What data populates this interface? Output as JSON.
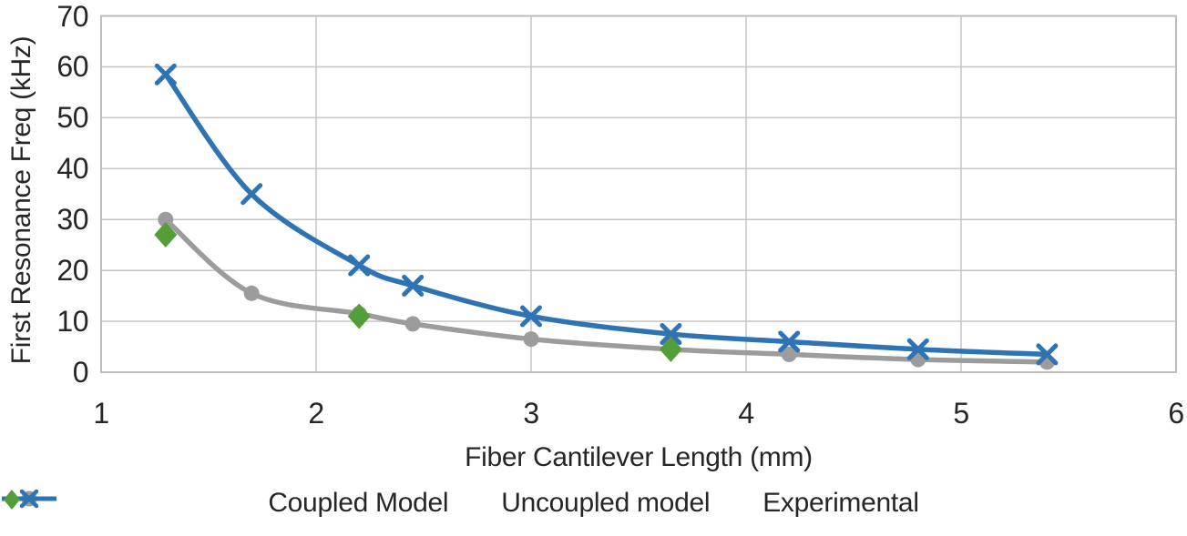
{
  "chart_data": {
    "type": "line",
    "title": "",
    "xlabel": "Fiber Cantilever Length (mm)",
    "ylabel": "First Resonance Freq (kHz)",
    "xlim": [
      1,
      6
    ],
    "ylim": [
      0,
      70
    ],
    "x_ticks": [
      "1",
      "2",
      "3",
      "4",
      "5",
      "6"
    ],
    "y_ticks": [
      "0",
      "10",
      "20",
      "30",
      "40",
      "50",
      "60",
      "70"
    ],
    "grid": true,
    "legend_position": "bottom",
    "x": [
      1.3,
      1.7,
      2.2,
      2.45,
      3.0,
      3.65,
      4.2,
      4.8,
      5.4
    ],
    "series": [
      {
        "name": "Coupled Model",
        "marker": "circle",
        "color": "#9C9C9C",
        "smooth": true,
        "x": [
          1.3,
          1.7,
          2.2,
          2.45,
          3.0,
          3.65,
          4.2,
          4.8,
          5.4
        ],
        "values": [
          30,
          15.5,
          11.5,
          9.5,
          6.5,
          4.5,
          3.5,
          2.5,
          2
        ]
      },
      {
        "name": "Uncoupled model",
        "marker": "x",
        "color": "#2E74B5",
        "smooth": true,
        "x": [
          1.3,
          1.7,
          2.2,
          2.45,
          3.0,
          3.65,
          4.2,
          4.8,
          5.4
        ],
        "values": [
          58.5,
          35,
          21,
          17,
          11,
          7.5,
          6,
          4.5,
          3.5
        ]
      },
      {
        "name": "Experimental",
        "marker": "diamond",
        "color": "#549E39",
        "smooth": false,
        "line": false,
        "x": [
          1.3,
          2.2,
          3.65
        ],
        "values": [
          27,
          11,
          4.5
        ]
      }
    ],
    "grid_color": "#C9C9C9",
    "border_color": "#BDBDBD",
    "text_color": "#262626"
  }
}
